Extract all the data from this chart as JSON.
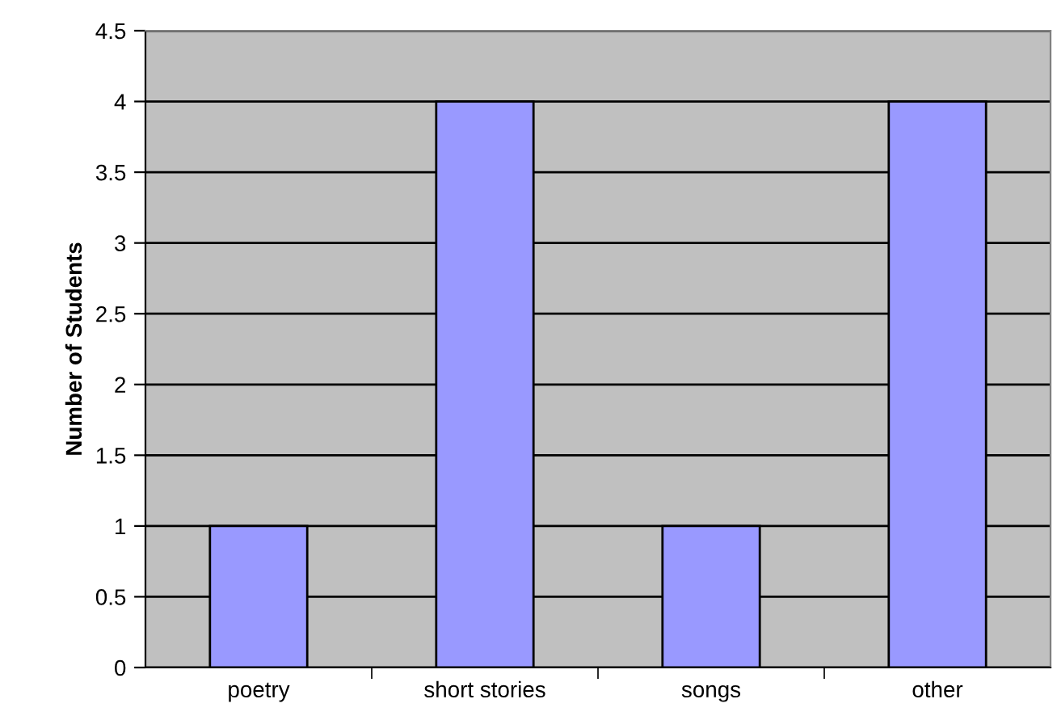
{
  "chart_data": {
    "type": "bar",
    "ylabel": "Number of Students",
    "categories": [
      "poetry",
      "short stories",
      "songs",
      "other"
    ],
    "values": [
      1,
      4,
      1,
      4
    ],
    "color": "#9999ff",
    "ylim": [
      0,
      4.5
    ],
    "yticks": [
      0,
      0.5,
      1,
      1.5,
      2,
      2.5,
      3,
      3.5,
      4,
      4.5
    ],
    "grid": "y",
    "legend": false
  }
}
